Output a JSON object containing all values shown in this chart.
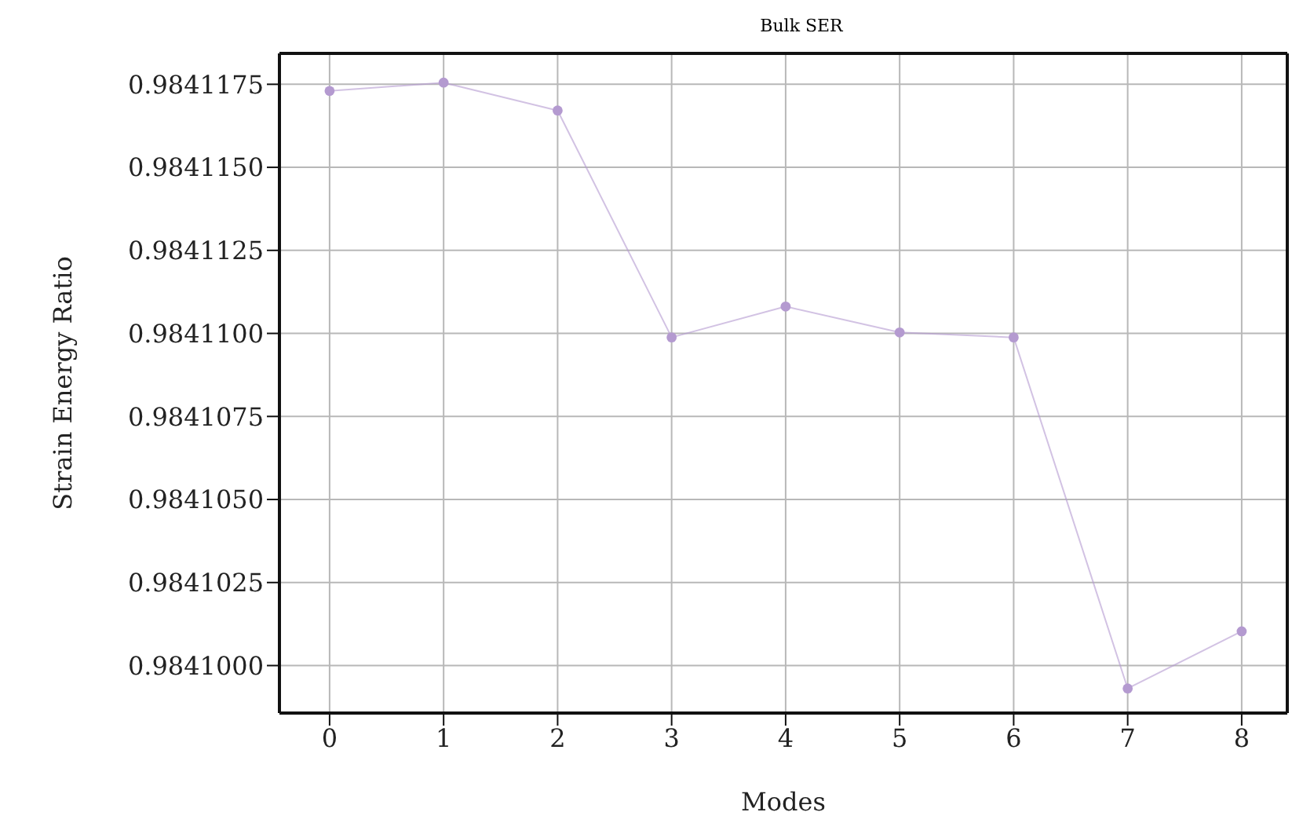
{
  "chart_data": {
    "type": "line",
    "title": "Bulk SER",
    "xlabel": "Modes",
    "ylabel": "Strain Energy Ratio",
    "x": [
      0,
      1,
      2,
      3,
      4,
      5,
      6,
      7,
      8
    ],
    "series": [
      {
        "color": "#b49ad0",
        "values": [
          0.9841173,
          0.98411755,
          0.98411671,
          0.98410988,
          0.98411081,
          0.98411003,
          0.98410988,
          0.98409931,
          0.98410103
        ]
      }
    ],
    "xlim": [
      -0.44,
      8.4
    ],
    "xticks": [
      0,
      1,
      2,
      3,
      4,
      5,
      6,
      7,
      8
    ],
    "ylim": [
      0.98409857,
      0.98411843
    ],
    "yticks": [
      {
        "value": 0.9841,
        "label": "0.9841000"
      },
      {
        "value": 0.9841025,
        "label": "0.9841025"
      },
      {
        "value": 0.984105,
        "label": "0.9841050"
      },
      {
        "value": 0.9841075,
        "label": "0.9841075"
      },
      {
        "value": 0.98411,
        "label": "0.9841100"
      },
      {
        "value": 0.9841125,
        "label": "0.9841125"
      },
      {
        "value": 0.984115,
        "label": "0.9841150"
      },
      {
        "value": 0.9841175,
        "label": "0.9841175"
      }
    ],
    "grid": true,
    "marker": "circle",
    "line_style": "solid"
  }
}
